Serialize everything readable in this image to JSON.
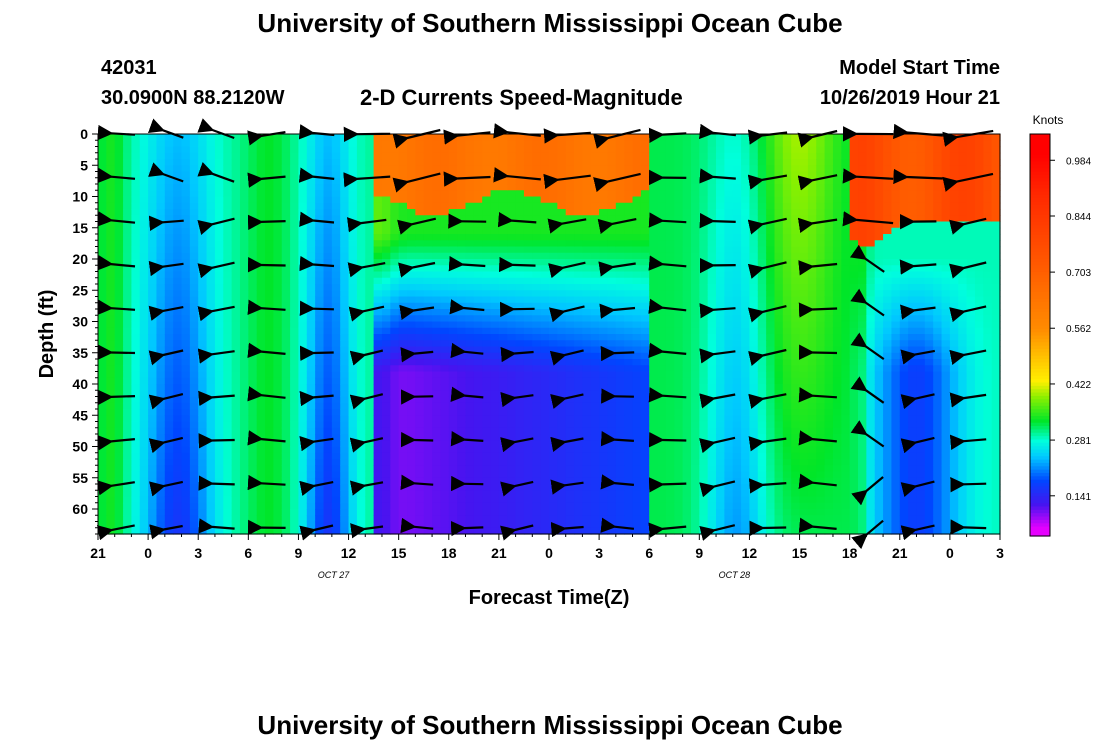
{
  "header": {
    "title": "University of Southern Mississippi Ocean Cube",
    "station_id": "42031",
    "location": "30.0900N 88.2120W",
    "subtitle": "2-D Currents Speed-Magnitude",
    "model_label": "Model Start Time",
    "model_time": "10/26/2019 Hour 21"
  },
  "footer": {
    "title": "University of Southern Mississippi Ocean Cube"
  },
  "chart_data": {
    "type": "heatmap",
    "xlabel": "Forecast Time(Z)",
    "ylabel": "Depth (ft)",
    "x_ticks": [
      {
        "hour": 0,
        "label": "21"
      },
      {
        "hour": 3,
        "label": "0"
      },
      {
        "hour": 6,
        "label": "3"
      },
      {
        "hour": 9,
        "label": "6"
      },
      {
        "hour": 12,
        "label": "9"
      },
      {
        "hour": 15,
        "label": "12"
      },
      {
        "hour": 18,
        "label": "15"
      },
      {
        "hour": 21,
        "label": "18"
      },
      {
        "hour": 24,
        "label": "21"
      },
      {
        "hour": 27,
        "label": "0"
      },
      {
        "hour": 30,
        "label": "3"
      },
      {
        "hour": 33,
        "label": "6"
      },
      {
        "hour": 36,
        "label": "9"
      },
      {
        "hour": 39,
        "label": "12"
      },
      {
        "hour": 42,
        "label": "15"
      },
      {
        "hour": 45,
        "label": "18"
      },
      {
        "hour": 48,
        "label": "21"
      },
      {
        "hour": 51,
        "label": "0"
      },
      {
        "hour": 54,
        "label": "3"
      }
    ],
    "date_labels": [
      {
        "hour": 15,
        "label": "OCT 27"
      },
      {
        "hour": 39,
        "label": "OCT 28"
      }
    ],
    "y_ticks": [
      0,
      5,
      10,
      15,
      20,
      25,
      30,
      35,
      40,
      45,
      50,
      55,
      60
    ],
    "xlim_hours": [
      0,
      54
    ],
    "ylim_depth_ft": [
      0,
      64
    ],
    "colorbar": {
      "title": "Knots",
      "range": [
        0.04,
        1.05
      ],
      "tick_values": [
        0.141,
        0.281,
        0.422,
        0.562,
        0.703,
        0.844,
        0.984
      ],
      "tick_labels": [
        "0.141",
        "0.281",
        "0.422",
        "0.562",
        "0.703",
        "0.844",
        "0.984"
      ]
    },
    "arrow_depths_ft": [
      0,
      7,
      14,
      21,
      28,
      35,
      42,
      49,
      56,
      63
    ],
    "arrow_hours": [
      1.5,
      4.5,
      7.5,
      10.5,
      13.5,
      16.5,
      19.5,
      22.5,
      25.5,
      28.5,
      31.5,
      34.5,
      37.5,
      40.5,
      43.5,
      46.5,
      49.5,
      52.5
    ]
  }
}
